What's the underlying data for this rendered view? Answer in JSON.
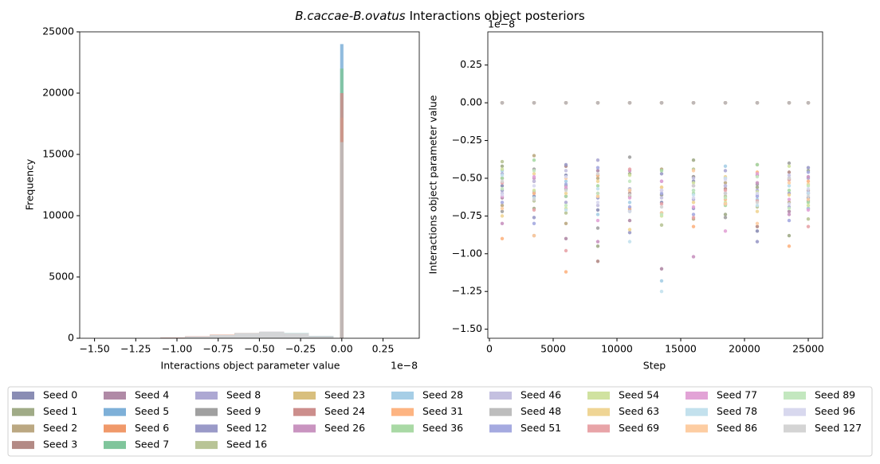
{
  "title": {
    "italic": "B.caccae-B.ovatus",
    "text": "Interactions object posteriors"
  },
  "legend_columns": 9,
  "chart_data": [
    {
      "type": "histogram",
      "xlabel": "Interactions object parameter value",
      "ylabel": "Frequency",
      "x_offset": "1e−8",
      "xlim": [
        -1.59,
        0.47
      ],
      "ylim": [
        0,
        25000
      ],
      "xticks": [
        {
          "value": -1.5,
          "label": "−1.50"
        },
        {
          "value": -1.25,
          "label": "−1.25"
        },
        {
          "value": -1.0,
          "label": "−1.00"
        },
        {
          "value": -0.75,
          "label": "−0.75"
        },
        {
          "value": -0.5,
          "label": "−0.50"
        },
        {
          "value": -0.25,
          "label": "−0.25"
        },
        {
          "value": 0,
          "label": "0.00"
        },
        {
          "value": 0.25,
          "label": "0.25"
        }
      ],
      "yticks": [
        0,
        5000,
        10000,
        15000,
        20000,
        25000
      ],
      "bins": [
        -1.1,
        -0.95,
        -0.8,
        -0.65,
        -0.5,
        -0.35,
        -0.2,
        -0.05,
        -0.01,
        0.01
      ],
      "series": [
        {
          "name": "Seed 0",
          "color": "#8a8db4",
          "values": [
            30,
            120,
            260,
            400,
            500,
            380,
            150,
            10,
            0
          ]
        },
        {
          "name": "Seed 1",
          "color": "#a0ab87",
          "values": [
            20,
            100,
            240,
            420,
            520,
            400,
            170,
            20,
            0
          ]
        },
        {
          "name": "Seed 2",
          "color": "#bba882",
          "values": [
            40,
            140,
            280,
            410,
            490,
            360,
            140,
            10,
            0
          ]
        },
        {
          "name": "Seed 3",
          "color": "#b38a85",
          "values": [
            50,
            160,
            300,
            430,
            510,
            350,
            130,
            10,
            0
          ]
        },
        {
          "name": "Seed 4",
          "color": "#b08aa6",
          "values": [
            35,
            130,
            270,
            420,
            530,
            390,
            150,
            15,
            0
          ]
        },
        {
          "name": "Seed 5",
          "color": "#7eb0d8",
          "values": [
            0,
            0,
            0,
            0,
            0,
            0,
            0,
            0,
            24000
          ]
        },
        {
          "name": "Seed 6",
          "color": "#f0996a",
          "values": [
            0,
            0,
            0,
            0,
            0,
            0,
            0,
            0,
            14300
          ]
        },
        {
          "name": "Seed 7",
          "color": "#7fc59b",
          "values": [
            0,
            0,
            0,
            0,
            0,
            0,
            0,
            0,
            22000
          ]
        },
        {
          "name": "Seed 8",
          "color": "#ada8d3",
          "values": [
            25,
            110,
            250,
            400,
            510,
            400,
            170,
            20,
            0
          ]
        },
        {
          "name": "Seed 9",
          "color": "#a0a0a0",
          "values": [
            30,
            120,
            260,
            410,
            500,
            390,
            160,
            10,
            0
          ]
        },
        {
          "name": "Seed 12",
          "color": "#9a9ac8",
          "values": [
            45,
            150,
            290,
            420,
            490,
            370,
            140,
            10,
            0
          ]
        },
        {
          "name": "Seed 16",
          "color": "#b8c496",
          "values": [
            20,
            100,
            230,
            390,
            520,
            420,
            180,
            20,
            0
          ]
        },
        {
          "name": "Seed 23",
          "color": "#d8bf7e",
          "values": [
            0,
            0,
            0,
            0,
            0,
            0,
            0,
            0,
            18000
          ]
        },
        {
          "name": "Seed 24",
          "color": "#cc8e8c",
          "values": [
            0,
            0,
            0,
            0,
            0,
            0,
            0,
            0,
            20000
          ]
        },
        {
          "name": "Seed 26",
          "color": "#c994c0",
          "values": [
            40,
            140,
            280,
            420,
            500,
            370,
            150,
            10,
            0
          ]
        },
        {
          "name": "Seed 28",
          "color": "#a6cee6",
          "values": [
            15,
            90,
            220,
            380,
            520,
            430,
            190,
            25,
            0
          ]
        },
        {
          "name": "Seed 31",
          "color": "#fdb482",
          "values": [
            35,
            130,
            270,
            410,
            500,
            380,
            160,
            15,
            0
          ]
        },
        {
          "name": "Seed 36",
          "color": "#a9d9a5",
          "values": [
            20,
            110,
            250,
            410,
            520,
            410,
            170,
            20,
            0
          ]
        },
        {
          "name": "Seed 46",
          "color": "#c4c0e0",
          "values": [
            30,
            120,
            260,
            420,
            510,
            390,
            160,
            15,
            0
          ]
        },
        {
          "name": "Seed 48",
          "color": "#bdbdbd",
          "values": [
            0,
            0,
            0,
            0,
            0,
            0,
            0,
            0,
            16000
          ]
        },
        {
          "name": "Seed 51",
          "color": "#a5aae0",
          "values": [
            25,
            115,
            255,
            405,
            505,
            395,
            165,
            15,
            0
          ]
        },
        {
          "name": "Seed 54",
          "color": "#d0e2a0",
          "values": [
            30,
            125,
            265,
            415,
            515,
            385,
            155,
            10,
            0
          ]
        },
        {
          "name": "Seed 63",
          "color": "#efd595",
          "values": [
            40,
            135,
            275,
            415,
            495,
            375,
            145,
            10,
            0
          ]
        },
        {
          "name": "Seed 69",
          "color": "#e8a4a8",
          "values": [
            45,
            145,
            285,
            425,
            505,
            365,
            135,
            10,
            0
          ]
        },
        {
          "name": "Seed 77",
          "color": "#e2a3d6",
          "values": [
            35,
            125,
            265,
            405,
            500,
            385,
            160,
            15,
            0
          ]
        },
        {
          "name": "Seed 78",
          "color": "#c3e1ed",
          "values": [
            20,
            105,
            245,
            405,
            515,
            405,
            175,
            20,
            0
          ]
        },
        {
          "name": "Seed 86",
          "color": "#fdcda2",
          "values": [
            40,
            140,
            280,
            420,
            500,
            370,
            150,
            10,
            0
          ]
        },
        {
          "name": "Seed 89",
          "color": "#c3e7bf",
          "values": [
            25,
            115,
            255,
            415,
            515,
            395,
            165,
            15,
            0
          ]
        },
        {
          "name": "Seed 96",
          "color": "#d8d8ee",
          "values": [
            30,
            120,
            260,
            410,
            505,
            385,
            160,
            15,
            0
          ]
        },
        {
          "name": "Seed 127",
          "color": "#d4d4d4",
          "values": [
            20,
            110,
            250,
            400,
            510,
            400,
            170,
            20,
            0
          ]
        }
      ]
    },
    {
      "type": "scatter",
      "xlabel": "Step",
      "ylabel": "Interactions object parameter value",
      "y_offset": "1e−8",
      "xlim": [
        -125,
        26125
      ],
      "ylim": [
        -1.56,
        0.47
      ],
      "xticks": [
        0,
        5000,
        10000,
        15000,
        20000,
        25000
      ],
      "yticks": [
        {
          "value": 0.25,
          "label": "0.25"
        },
        {
          "value": 0,
          "label": "0.00"
        },
        {
          "value": -0.25,
          "label": "−0.25"
        },
        {
          "value": -0.5,
          "label": "−0.50"
        },
        {
          "value": -0.75,
          "label": "−0.75"
        },
        {
          "value": -1.0,
          "label": "−1.00"
        },
        {
          "value": -1.25,
          "label": "−1.25"
        },
        {
          "value": -1.5,
          "label": "−1.50"
        }
      ],
      "x": [
        1000,
        3500,
        6000,
        8500,
        11000,
        13500,
        16000,
        18500,
        21000,
        23500,
        25000
      ],
      "series": [
        {
          "color": "#8a8db4",
          "values": [
            -0.55,
            -0.62,
            -0.48,
            -0.71,
            -0.58,
            -0.66,
            -0.52,
            -0.6,
            -0.85,
            -0.5,
            -0.63
          ]
        },
        {
          "color": "#a0ab87",
          "values": [
            -0.42,
            -0.7,
            -0.55,
            -0.95,
            -0.47,
            -0.61,
            -0.38,
            -0.74,
            -0.56,
            -0.88,
            -0.45
          ]
        },
        {
          "color": "#bba882",
          "values": [
            -0.68,
            -0.35,
            -0.8,
            -0.5,
            -0.62,
            -0.44,
            -0.77,
            -0.53,
            -0.41,
            -0.66,
            -0.58
          ]
        },
        {
          "color": "#b38a85",
          "values": [
            -0.5,
            -0.88,
            -0.42,
            -1.05,
            -0.6,
            -0.73,
            -0.49,
            -0.57,
            -0.82,
            -0.46,
            -0.7
          ]
        },
        {
          "color": "#b08aa6",
          "values": [
            -0.63,
            -0.52,
            -0.9,
            -0.45,
            -0.78,
            -1.1,
            -0.55,
            -0.67,
            -0.48,
            -0.72,
            -0.6
          ]
        },
        {
          "color": "#7eb0d8",
          "values": [
            0,
            0,
            0,
            0,
            0,
            0,
            0,
            0,
            0,
            0,
            0
          ]
        },
        {
          "color": "#f0996a",
          "values": [
            0,
            0,
            0,
            0,
            0,
            0,
            0,
            0,
            0,
            0,
            0
          ]
        },
        {
          "color": "#7fc59b",
          "values": [
            0,
            0,
            0,
            0,
            0,
            0,
            0,
            0,
            0,
            0,
            0
          ]
        },
        {
          "color": "#ada8d3",
          "values": [
            -0.47,
            -0.59,
            -0.66,
            -0.38,
            -0.71,
            -0.52,
            -0.64,
            -0.45,
            -0.58,
            -0.69,
            -0.5
          ]
        },
        {
          "color": "#a0a0a0",
          "values": [
            -0.72,
            -0.44,
            -0.57,
            -0.83,
            -0.36,
            -0.61,
            -0.49,
            -0.76,
            -0.54,
            -0.4,
            -0.65
          ]
        },
        {
          "color": "#9a9ac8",
          "values": [
            -0.58,
            -0.76,
            -0.41,
            -0.63,
            -0.86,
            -0.47,
            -0.7,
            -0.55,
            -0.92,
            -0.6,
            -0.43
          ]
        },
        {
          "color": "#b8c496",
          "values": [
            -0.39,
            -0.65,
            -0.73,
            -0.48,
            -0.57,
            -0.81,
            -0.44,
            -0.62,
            -0.69,
            -0.51,
            -0.77
          ]
        },
        {
          "color": "#d8bf7e",
          "values": [
            0,
            0,
            0,
            0,
            0,
            0,
            0,
            0,
            0,
            0,
            0
          ]
        },
        {
          "color": "#cc8e8c",
          "values": [
            0,
            0,
            0,
            0,
            0,
            0,
            0,
            0,
            0,
            0,
            0
          ]
        },
        {
          "color": "#c994c0",
          "values": [
            -0.8,
            -0.5,
            -0.62,
            -0.92,
            -0.45,
            -0.58,
            -1.02,
            -0.67,
            -0.53,
            -0.74,
            -0.49
          ]
        },
        {
          "color": "#a6cee6",
          "values": [
            -0.45,
            -0.6,
            -0.52,
            -0.74,
            -0.66,
            -1.18,
            -0.58,
            -0.42,
            -0.64,
            -0.55,
            -0.7
          ]
        },
        {
          "color": "#fdb482",
          "values": [
            -0.9,
            -0.6,
            -1.12,
            -0.48,
            -0.7,
            -0.56,
            -0.82,
            -0.64,
            -0.46,
            -0.95,
            -0.52
          ]
        },
        {
          "color": "#a9d9a5",
          "values": [
            -0.5,
            -0.38,
            -0.62,
            -0.55,
            -0.72,
            -0.45,
            -0.6,
            -0.68,
            -0.41,
            -0.58,
            -0.66
          ]
        },
        {
          "color": "#c4c0e0",
          "values": [
            -0.6,
            -0.52,
            -0.45,
            -0.68,
            -0.57,
            -0.63,
            -0.5,
            -0.55,
            -0.61,
            -0.48,
            -0.59
          ]
        },
        {
          "color": "#bdbdbd",
          "values": [
            0,
            0,
            0,
            0,
            0,
            0,
            0,
            0,
            0,
            0,
            0
          ]
        },
        {
          "color": "#a5aae0",
          "values": [
            -0.66,
            -0.8,
            -0.54,
            -0.43,
            -0.69,
            -0.6,
            -0.74,
            -0.5,
            -0.62,
            -0.78,
            -0.46
          ]
        },
        {
          "color": "#d0e2a0",
          "values": [
            -0.44,
            -0.58,
            -0.7,
            -0.62,
            -0.48,
            -0.75,
            -0.53,
            -0.66,
            -0.59,
            -0.42,
            -0.68
          ]
        },
        {
          "color": "#efd595",
          "values": [
            -0.75,
            -0.47,
            -0.6,
            -0.52,
            -0.84,
            -0.56,
            -0.66,
            -0.49,
            -0.72,
            -0.61,
            -0.54
          ]
        },
        {
          "color": "#e8a4a8",
          "values": [
            -0.53,
            -0.71,
            -0.98,
            -0.6,
            -0.44,
            -0.67,
            -0.76,
            -0.58,
            -0.65,
            -0.51,
            -0.82
          ]
        },
        {
          "color": "#e2a3d6",
          "values": [
            -0.62,
            -0.49,
            -0.56,
            -0.78,
            -0.63,
            -0.52,
            -0.69,
            -0.85,
            -0.47,
            -0.64,
            -0.71
          ]
        },
        {
          "color": "#c3e1ed",
          "values": [
            -0.48,
            -0.63,
            -0.71,
            -0.57,
            -0.92,
            -1.25,
            -0.61,
            -0.5,
            -0.68,
            -0.55,
            -0.6
          ]
        },
        {
          "color": "#fdcda2",
          "values": [
            -0.7,
            -0.88,
            -0.5,
            -0.62,
            -0.58,
            -0.73,
            -0.45,
            -0.67,
            -0.8,
            -0.53,
            -0.64
          ]
        },
        {
          "color": "#c3e7bf",
          "values": [
            -0.57,
            -0.45,
            -0.68,
            -0.6,
            -0.52,
            -0.74,
            -0.58,
            -0.63,
            -0.49,
            -0.7,
            -0.55
          ]
        },
        {
          "color": "#d8d8ee",
          "values": [
            -0.61,
            -0.55,
            -0.49,
            -0.66,
            -0.72,
            -0.58,
            -0.63,
            -0.51,
            -0.6,
            -0.67,
            -0.57
          ]
        },
        {
          "color": "#d4d4d4",
          "values": [
            -0.52,
            -0.64,
            -0.58,
            -0.47,
            -0.61,
            -0.69,
            -0.55,
            -0.6,
            -0.66,
            -0.5,
            -0.62
          ]
        }
      ]
    }
  ]
}
